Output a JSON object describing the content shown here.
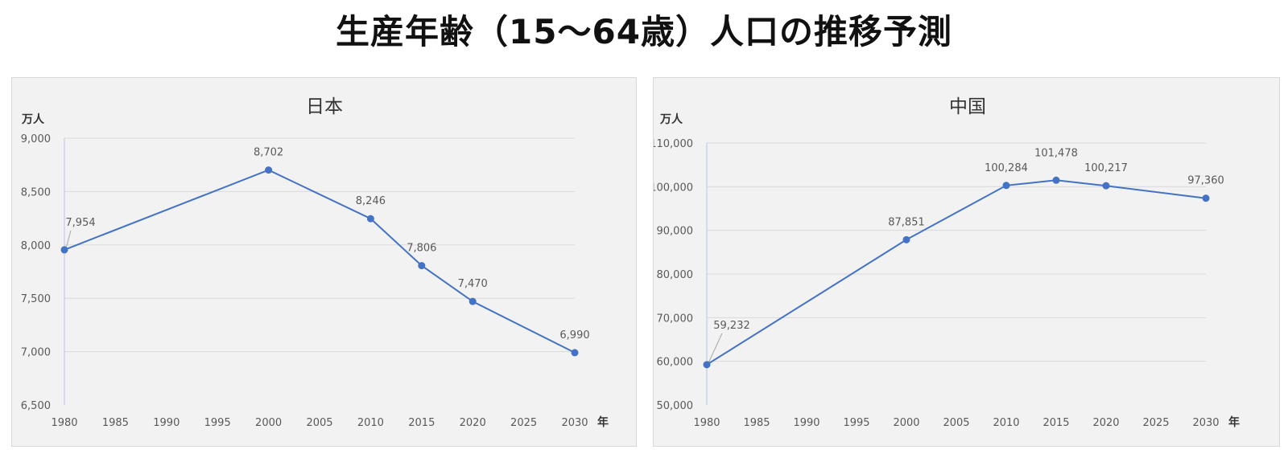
{
  "title": "生産年齢（15～64歳）人口の推移予測",
  "colors": {
    "series": "#4472c4",
    "marker": "#4472c4",
    "grid": "#d9d9d9",
    "panel_bg": "#f2f2f2"
  },
  "chart_data": [
    {
      "type": "line",
      "title": "日本",
      "ylabel": "万人",
      "xlabel": "年",
      "xlim": [
        1980,
        2030
      ],
      "x_ticks": [
        1980,
        1985,
        1990,
        1995,
        2000,
        2005,
        2010,
        2015,
        2020,
        2025,
        2030
      ],
      "ylim": [
        6500,
        9000
      ],
      "y_ticks": [
        6500,
        7000,
        7500,
        8000,
        8500,
        9000
      ],
      "y_tick_labels": [
        "6,500",
        "7,000",
        "7,500",
        "8,000",
        "8,500",
        "9,000"
      ],
      "grid": true,
      "series": [
        {
          "x": [
            1980,
            2000,
            2010,
            2015,
            2020,
            2030
          ],
          "values": [
            7954,
            8702,
            8246,
            7806,
            7470,
            6990
          ],
          "labels": [
            "7,954",
            "8,702",
            "8,246",
            "7,806",
            "7,470",
            "6,990"
          ]
        }
      ]
    },
    {
      "type": "line",
      "title": "中国",
      "ylabel": "万人",
      "xlabel": "年",
      "xlim": [
        1980,
        2030
      ],
      "x_ticks": [
        1980,
        1985,
        1990,
        1995,
        2000,
        2005,
        2010,
        2015,
        2020,
        2025,
        2030
      ],
      "ylim": [
        50000,
        110000
      ],
      "y_ticks": [
        50000,
        60000,
        70000,
        80000,
        90000,
        100000,
        110000
      ],
      "y_tick_labels": [
        "50,000",
        "60,000",
        "70,000",
        "80,000",
        "90,000",
        "100,000",
        "110,000"
      ],
      "grid": true,
      "series": [
        {
          "x": [
            1980,
            2000,
            2010,
            2015,
            2020,
            2030
          ],
          "values": [
            59232,
            87851,
            100284,
            101478,
            100217,
            97360
          ],
          "labels": [
            "59,232",
            "87,851",
            "100,284",
            "101,478",
            "100,217",
            "97,360"
          ]
        }
      ]
    }
  ]
}
